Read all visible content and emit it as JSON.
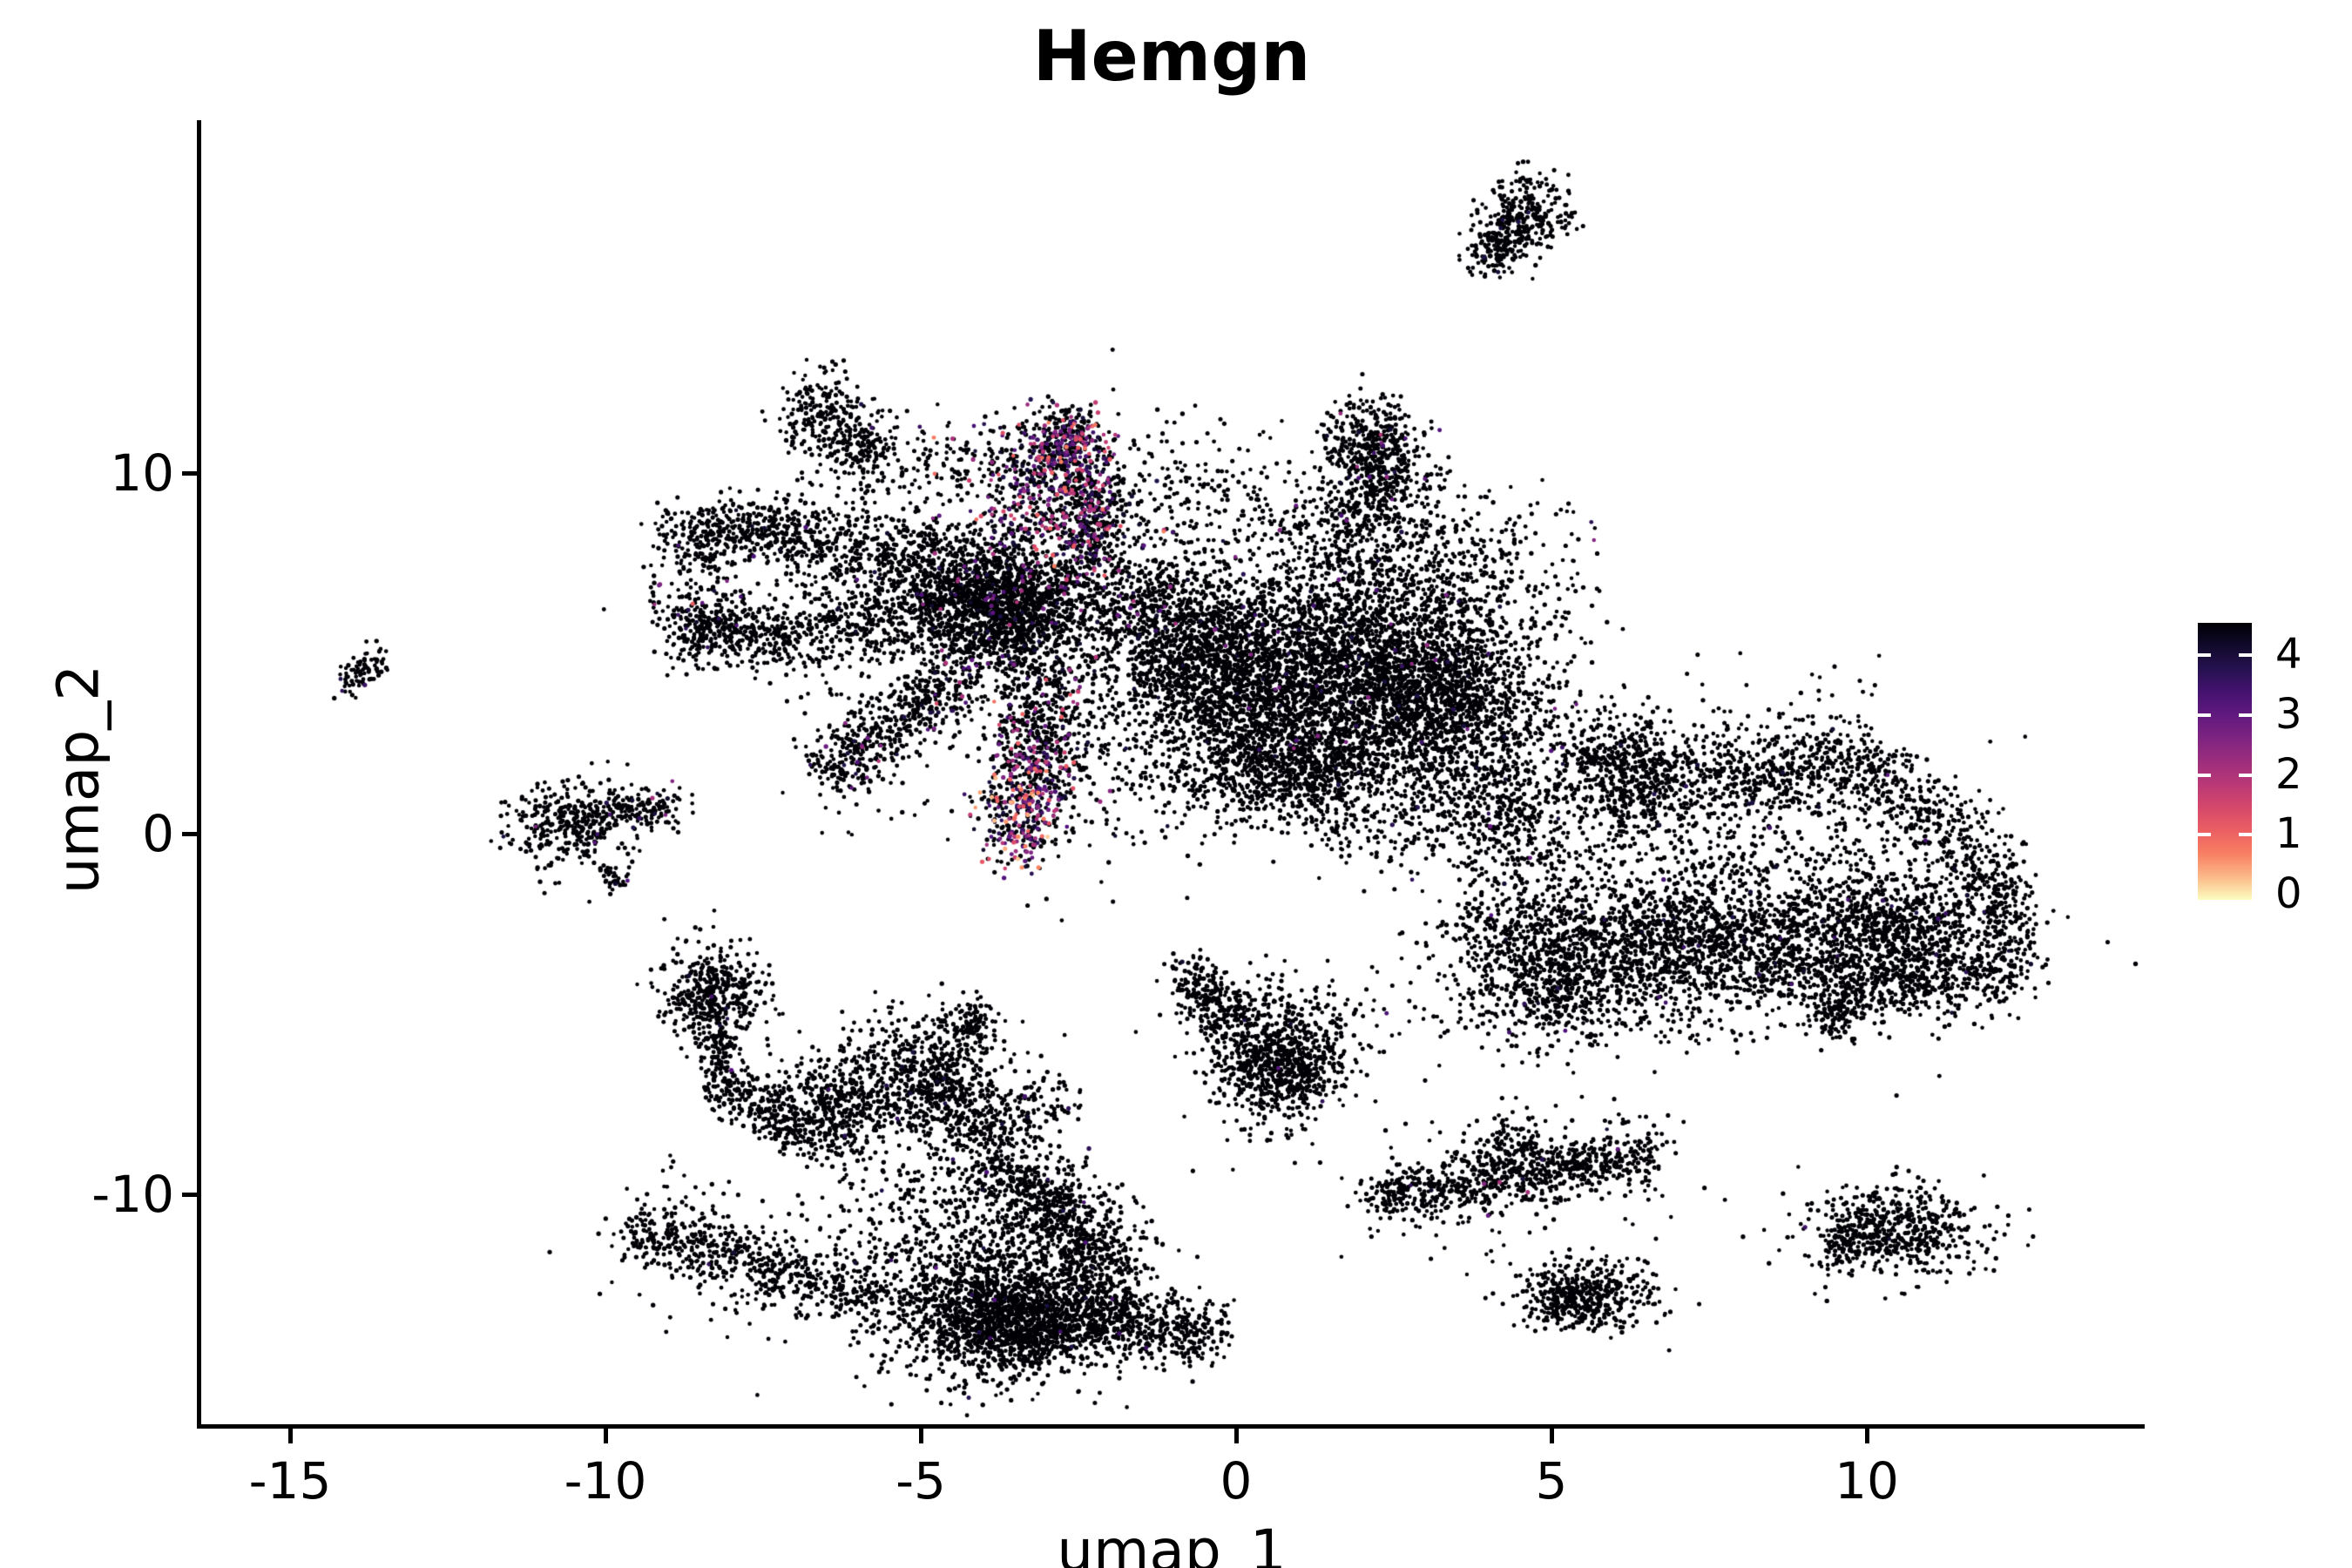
{
  "title": "Hemgn",
  "axes": {
    "x": {
      "label": "umap_1",
      "tick_labels": [
        "-15",
        "-10",
        "-5",
        "0",
        "5",
        "10"
      ]
    },
    "y": {
      "label": "umap_2",
      "tick_labels": [
        "-10",
        "0",
        "10"
      ]
    }
  },
  "legend": {
    "tick_labels": [
      "0",
      "1",
      "2",
      "3",
      "4"
    ]
  },
  "colors": {
    "background": "#FFFFFF",
    "axis": "#000000",
    "text": "#000000",
    "magma_stops": [
      "#000004",
      "#1D1147",
      "#51127C",
      "#822681",
      "#B63679",
      "#E65164",
      "#FB8861",
      "#FCFDBF"
    ]
  },
  "chart_data": {
    "type": "scatter",
    "title": "Hemgn",
    "xlabel": "umap_1",
    "ylabel": "umap_2",
    "xlim": [
      -16.4,
      14.4
    ],
    "ylim": [
      -17.3,
      19.7
    ],
    "x_ticks": [
      -15,
      -10,
      -5,
      0,
      5,
      10
    ],
    "y_ticks": [
      -10,
      0,
      10
    ],
    "grid": false,
    "legend_position": "right",
    "colorbar": {
      "label_values": [
        0,
        1,
        2,
        3,
        4
      ],
      "vmin": 0,
      "vmax": 4.46,
      "palette": "magma"
    },
    "description": "UMAP feature plot of Hemgn expression; ~34000 cells, most with zero expression (near-black), expressing cells (purple/pink/orange) concentrated in the upper-right spike and lower tail of the left star-shaped cluster.",
    "clusters": [
      {
        "kind": "seg",
        "x1": -6.93,
        "y1": 12.17,
        "x2": -5.61,
        "y2": 10.19,
        "w": 55,
        "n": 380
      },
      {
        "kind": "seg",
        "x1": -8.98,
        "y1": 8.19,
        "x2": -7.17,
        "y2": 8.38,
        "w": 45,
        "n": 400
      },
      {
        "kind": "seg",
        "x1": -7.17,
        "y1": 8.33,
        "x2": -3.58,
        "y2": 7.17,
        "w": 58,
        "n": 720
      },
      {
        "kind": "seg",
        "x1": -8.94,
        "y1": 5.68,
        "x2": -7.1,
        "y2": 5.48,
        "w": 44,
        "n": 380
      },
      {
        "kind": "seg",
        "x1": -7.1,
        "y1": 5.53,
        "x2": -3.44,
        "y2": 6.4,
        "w": 56,
        "n": 650
      },
      {
        "kind": "seg",
        "x1": -2.57,
        "y1": 11.23,
        "x2": -3.07,
        "y2": 8.09,
        "w": 34,
        "w2": 150,
        "n": 950,
        "p": 0.4,
        "vmax": 3.8
      },
      {
        "kind": "seg",
        "x1": -2.2,
        "y1": 9.59,
        "x2": -2.36,
        "y2": 7.71,
        "w": 36,
        "n": 220,
        "p": 0.3,
        "vmax": 3.5
      },
      {
        "kind": "g",
        "cx": -3.51,
        "cy": 6.21,
        "sx": 0.85,
        "sy": 0.97,
        "n": 1600,
        "p": 0.04,
        "vmax": 2.6
      },
      {
        "kind": "g",
        "cx": -1.37,
        "cy": 6.45,
        "sx": 0.55,
        "sy": 0.95,
        "n": 330,
        "p": 0.03,
        "vmax": 2.0
      },
      {
        "kind": "seg",
        "x1": -6.57,
        "y1": 1.71,
        "x2": -4.3,
        "y2": 4.37,
        "w": 42,
        "n": 430,
        "p": 0.06,
        "vmax": 3.2
      },
      {
        "kind": "seg",
        "x1": -6.57,
        "y1": 1.71,
        "x2": -4.3,
        "y2": 4.37,
        "w": 100,
        "n": 140,
        "p": 0.04,
        "vmax": 2.5
      },
      {
        "kind": "seg",
        "x1": -2.94,
        "y1": 3.94,
        "x2": -3.22,
        "y2": 1.81,
        "w": 72,
        "n": 420,
        "p": 0.18,
        "vmax": 3.6
      },
      {
        "kind": "seg",
        "x1": -3.22,
        "y1": 1.81,
        "x2": -3.48,
        "y2": -0.36,
        "w": 56,
        "n": 400,
        "p": 0.5,
        "vmax": 4.2
      },
      {
        "kind": "g",
        "cx": -8.55,
        "cy": 6.45,
        "sx": 0.45,
        "sy": 0.4,
        "n": 70,
        "p": 0.22,
        "vmax": 3.4
      },
      {
        "kind": "g",
        "cx": -0.81,
        "cy": 9.47,
        "sx": 0.85,
        "sy": 1.2,
        "n": 200,
        "p": 0.02,
        "vmax": 2.0
      },
      {
        "kind": "g",
        "cx": -4.27,
        "cy": 10.31,
        "sx": 0.75,
        "sy": 0.75,
        "n": 150,
        "p": 0.05,
        "vmax": 3.0
      },
      {
        "kind": "seg",
        "x1": 1.99,
        "y1": 11.57,
        "x2": 2.39,
        "y2": 9.3,
        "w": 60,
        "n": 500,
        "p": 0.03,
        "vmax": 2.6
      },
      {
        "kind": "g",
        "cx": 1.84,
        "cy": 8.5,
        "sx": 0.75,
        "sy": 0.9,
        "n": 420,
        "p": 0.02,
        "vmax": 2.0
      },
      {
        "kind": "g",
        "cx": 1.53,
        "cy": 4.52,
        "sx": 1.45,
        "sy": 1.55,
        "n": 3600,
        "p": 0.015,
        "vmax": 2.2
      },
      {
        "kind": "g",
        "cx": -0.65,
        "cy": 4.71,
        "sx": 0.7,
        "sy": 1.15,
        "n": 850
      },
      {
        "kind": "g",
        "cx": 0.84,
        "cy": 1.91,
        "sx": 1.05,
        "sy": 0.8,
        "n": 1000
      },
      {
        "kind": "g",
        "cx": 3.26,
        "cy": 3.79,
        "sx": 0.8,
        "sy": 1.05,
        "n": 850
      },
      {
        "kind": "seg",
        "x1": 3.33,
        "y1": 1.74,
        "x2": 4.78,
        "y2": -0.68,
        "w": 75,
        "n": 240,
        "p": 0.02,
        "vmax": 1.8
      },
      {
        "kind": "g",
        "cx": 3.67,
        "cy": 7.54,
        "sx": 0.85,
        "sy": 1.0,
        "n": 240
      },
      {
        "kind": "g",
        "cx": 4.78,
        "cy": 1.26,
        "sx": 0.95,
        "sy": 1.35,
        "n": 450
      },
      {
        "kind": "seg",
        "x1": 5.81,
        "y1": 1.18,
        "x2": 9.82,
        "y2": 2.1,
        "w": 46,
        "n": 520
      },
      {
        "kind": "seg",
        "x1": 5.81,
        "y1": 1.18,
        "x2": 9.82,
        "y2": 2.1,
        "w": 115,
        "n": 240
      },
      {
        "kind": "seg",
        "x1": 9.82,
        "y1": 2.05,
        "x2": 12.06,
        "y2": -0.85,
        "w": 52,
        "n": 360
      },
      {
        "kind": "seg",
        "x1": 3.63,
        "y1": -2.61,
        "x2": 11.2,
        "y2": -2.29,
        "w": 50,
        "n": 700
      },
      {
        "kind": "seg",
        "x1": 3.63,
        "y1": -2.61,
        "x2": 11.2,
        "y2": -2.29,
        "w": 125,
        "n": 330
      },
      {
        "kind": "g",
        "cx": 5.12,
        "cy": -3.94,
        "sx": 0.95,
        "sy": 0.95,
        "n": 850
      },
      {
        "kind": "g",
        "cx": 7.36,
        "cy": -3.41,
        "sx": 0.85,
        "sy": 0.9,
        "n": 650
      },
      {
        "kind": "g",
        "cx": 10.51,
        "cy": -2.97,
        "sx": 0.95,
        "sy": 1.05,
        "n": 850
      },
      {
        "kind": "seg",
        "x1": 12.14,
        "y1": -1.23,
        "x2": 12.28,
        "y2": -3.89,
        "w": 42,
        "n": 210
      },
      {
        "kind": "seg",
        "x1": 8.3,
        "y1": -3.74,
        "x2": 12.14,
        "y2": -4.08,
        "w": 52,
        "n": 430
      },
      {
        "kind": "seg",
        "x1": 9.85,
        "y1": -4.42,
        "x2": 9.31,
        "y2": -5.41,
        "w": 30,
        "n": 130
      },
      {
        "kind": "g",
        "cx": 7.89,
        "cy": -0.43,
        "sx": 1.55,
        "sy": 1.35,
        "n": 480,
        "p": 0.012,
        "vmax": 1.4
      },
      {
        "kind": "g",
        "cx": 6.09,
        "cy": 2.1,
        "sx": 0.5,
        "sy": 0.55,
        "n": 260
      },
      {
        "kind": "g",
        "cx": -8.3,
        "cy": -4.49,
        "sx": 0.42,
        "sy": 0.72,
        "n": 430
      },
      {
        "kind": "seg",
        "x1": -8.25,
        "y1": -5.43,
        "x2": -8.11,
        "y2": -7.13,
        "w": 26,
        "n": 110
      },
      {
        "kind": "seg",
        "x1": -8.19,
        "y1": -6.98,
        "x2": -6.67,
        "y2": -8.33,
        "w": 36,
        "n": 240
      },
      {
        "kind": "g",
        "cx": -6.31,
        "cy": -7.56,
        "sx": 0.52,
        "sy": 0.78,
        "n": 480
      },
      {
        "kind": "g",
        "cx": -4.79,
        "cy": -6.79,
        "sx": 0.58,
        "sy": 0.92,
        "n": 650
      },
      {
        "kind": "seg",
        "x1": -4.41,
        "y1": -5.43,
        "x2": -3.99,
        "y2": -5.0,
        "w": 30,
        "n": 80
      },
      {
        "kind": "seg",
        "x1": -4.65,
        "y1": -8.09,
        "x2": -2.72,
        "y2": -7.46,
        "w": 36,
        "n": 200
      },
      {
        "kind": "seg",
        "x1": -9.6,
        "y1": -10.94,
        "x2": -5.76,
        "y2": -12.83,
        "w": 38,
        "n": 520
      },
      {
        "kind": "seg",
        "x1": -9.6,
        "y1": -10.94,
        "x2": -5.76,
        "y2": -12.83,
        "w": 95,
        "n": 180
      },
      {
        "kind": "seg",
        "x1": -4.05,
        "y1": -8.91,
        "x2": -2.67,
        "y2": -10.6,
        "w": 55,
        "n": 480
      },
      {
        "kind": "seg",
        "x1": -2.67,
        "y1": -10.6,
        "x2": -2.02,
        "y2": -12.66,
        "w": 66,
        "n": 480
      },
      {
        "kind": "g",
        "cx": -3.83,
        "cy": -13.02,
        "sx": 1.0,
        "sy": 1.05,
        "n": 1500
      },
      {
        "kind": "g",
        "cx": -3.3,
        "cy": -13.65,
        "sx": 0.68,
        "sy": 0.58,
        "n": 750
      },
      {
        "kind": "seg",
        "x1": -2.17,
        "y1": -13.41,
        "x2": -0.29,
        "y2": -14.01,
        "w": 44,
        "n": 400
      },
      {
        "kind": "g",
        "cx": -4.93,
        "cy": -10.27,
        "sx": 0.78,
        "sy": 0.78,
        "n": 200
      },
      {
        "kind": "seg",
        "x1": -0.84,
        "y1": -3.79,
        "x2": 0.04,
        "y2": -5.29,
        "w": 36,
        "n": 240
      },
      {
        "kind": "seg",
        "x1": 0.04,
        "y1": -5.29,
        "x2": 1.01,
        "y2": -6.84,
        "w": 95,
        "n": 520
      },
      {
        "kind": "g",
        "cx": 0.7,
        "cy": -6.59,
        "sx": 0.42,
        "sy": 0.42,
        "n": 280
      },
      {
        "kind": "g",
        "cx": 0.91,
        "cy": -5.51,
        "sx": 0.68,
        "sy": 0.66,
        "n": 140
      },
      {
        "kind": "seg",
        "x1": 2.2,
        "y1": -10.07,
        "x2": 6.64,
        "y2": -8.91,
        "w": 34,
        "n": 680,
        "p": 0.012,
        "vmax": 2.4
      },
      {
        "kind": "seg",
        "x1": 2.2,
        "y1": -10.07,
        "x2": 6.64,
        "y2": -8.91,
        "w": 85,
        "n": 200
      },
      {
        "kind": "g",
        "cx": 4.43,
        "cy": -8.57,
        "sx": 0.32,
        "sy": 0.38,
        "n": 110
      },
      {
        "kind": "g",
        "cx": 5.57,
        "cy": -12.78,
        "sx": 0.58,
        "sy": 0.5,
        "n": 400
      },
      {
        "kind": "seg",
        "x1": 4.88,
        "y1": -13.26,
        "x2": 5.54,
        "y2": -12.78,
        "w": 30,
        "n": 90
      },
      {
        "kind": "g",
        "cx": 10.4,
        "cy": -11.06,
        "sx": 0.72,
        "sy": 0.62,
        "n": 520
      },
      {
        "kind": "seg",
        "x1": 9.41,
        "y1": -11.38,
        "x2": 9.93,
        "y2": -11.18,
        "w": 18,
        "n": 50
      },
      {
        "kind": "g",
        "cx": 10.4,
        "cy": -11.06,
        "sx": 1.2,
        "sy": 0.9,
        "n": 40
      },
      {
        "kind": "g",
        "cx": 4.61,
        "cy": 17.15,
        "sx": 0.36,
        "sy": 0.52,
        "n": 250,
        "p": 0.02,
        "vmax": 1.8
      },
      {
        "kind": "seg",
        "x1": 3.88,
        "y1": 15.85,
        "x2": 4.43,
        "y2": 16.79,
        "w": 30,
        "n": 150
      },
      {
        "kind": "seg",
        "x1": -14.12,
        "y1": 4.01,
        "x2": -13.56,
        "y2": 4.93,
        "w": 22,
        "n": 85
      },
      {
        "kind": "seg",
        "x1": -10.07,
        "y1": -0.99,
        "x2": -9.78,
        "y2": -1.38,
        "w": 15,
        "n": 32
      },
      {
        "kind": "g",
        "cx": -10.55,
        "cy": 0.29,
        "sx": 0.5,
        "sy": 0.6,
        "n": 360,
        "p": 0.02,
        "vmax": 2.0
      },
      {
        "kind": "g",
        "cx": -9.38,
        "cy": 0.7,
        "sx": 0.32,
        "sy": 0.3,
        "n": 120,
        "p": 0.12,
        "vmax": 2.4
      },
      {
        "kind": "g",
        "cx": -2.33,
        "cy": 1.86,
        "sx": 1.1,
        "sy": 1.3,
        "n": 170,
        "p": 0.03,
        "vmax": 2.0
      },
      {
        "kind": "g",
        "cx": 2.5,
        "cy": 0.05,
        "sx": 0.85,
        "sy": 0.6,
        "n": 140
      }
    ]
  }
}
